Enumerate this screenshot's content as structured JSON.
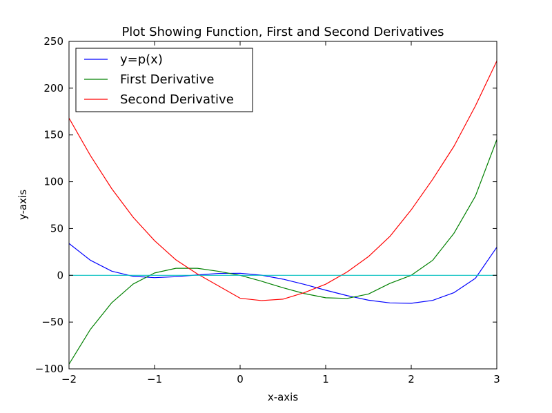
{
  "chart_data": {
    "type": "line",
    "title": "Plot Showing Function, First and Second Derivatives",
    "xlabel": "x-axis",
    "ylabel": "y-axis",
    "xlim": [
      -2,
      3
    ],
    "ylim": [
      -100,
      250
    ],
    "x_ticks": [
      -2,
      -1,
      0,
      1,
      2,
      3
    ],
    "x_tick_labels": [
      "−2",
      "−1",
      "0",
      "1",
      "2",
      "3"
    ],
    "y_ticks": [
      -100,
      -50,
      0,
      50,
      100,
      150,
      200,
      250
    ],
    "y_tick_labels": [
      "−100",
      "−50",
      "0",
      "50",
      "100",
      "150",
      "200",
      "250"
    ],
    "grid": false,
    "legend_position": "top-left",
    "x": [
      -2.0,
      -1.75,
      -1.5,
      -1.25,
      -1.0,
      -0.75,
      -0.5,
      -0.25,
      0.0,
      0.25,
      0.5,
      0.75,
      1.0,
      1.25,
      1.5,
      1.75,
      2.0,
      2.25,
      2.5,
      2.75,
      3.0
    ],
    "series": [
      {
        "name": "y=p(x)",
        "color": "#0000ff",
        "values": [
          34,
          16.1,
          4.4,
          -1.1,
          -2.5,
          -1.5,
          0.4,
          2.0,
          2.2,
          0.1,
          -4.1,
          -9.7,
          -15.9,
          -21.7,
          -26.6,
          -29.5,
          -29.9,
          -26.8,
          -18.5,
          -3.2,
          30
        ]
      },
      {
        "name": "First Derivative",
        "color": "#008000",
        "values": [
          -95,
          -57.8,
          -29.3,
          -9.3,
          2.5,
          7.5,
          7.5,
          4.2,
          0.0,
          -6.3,
          -13.3,
          -19.5,
          -24.0,
          -24.7,
          -20.0,
          -8.7,
          0.0,
          16.0,
          45.0,
          84.6,
          145
        ]
      },
      {
        "name": "Second Derivative",
        "color": "#ff0000",
        "values": [
          168,
          128,
          92.5,
          62,
          37,
          16.5,
          1.5,
          -11.5,
          -24.5,
          -27,
          -25.5,
          -18.5,
          -9.5,
          3.5,
          20,
          41.5,
          70,
          102.5,
          138,
          181,
          229
        ]
      },
      {
        "name": "",
        "color": "#00bfbf",
        "values": [
          0,
          0,
          0,
          0,
          0,
          0,
          0,
          0,
          0,
          0,
          0,
          0,
          0,
          0,
          0,
          0,
          0,
          0,
          0,
          0,
          0
        ]
      }
    ]
  }
}
